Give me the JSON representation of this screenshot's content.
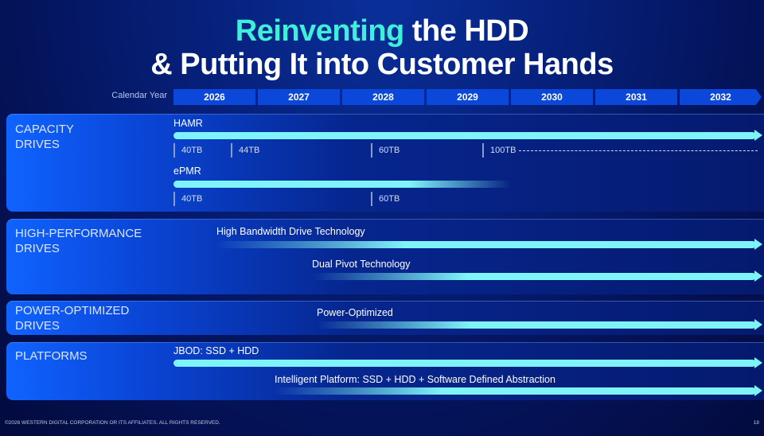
{
  "title": {
    "accent": "Reinventing",
    "line1_rest": " the HDD",
    "line2": "& Putting It into Customer Hands"
  },
  "calendar": {
    "label": "Calendar Year",
    "years": [
      "2026",
      "2027",
      "2028",
      "2029",
      "2030",
      "2031",
      "2032"
    ]
  },
  "sections": {
    "capacity": {
      "label_1": "CAPACITY",
      "label_2": "DRIVES",
      "hamr": {
        "label": "HAMR",
        "milestones": [
          "40TB",
          "44TB",
          "60TB",
          "100TB"
        ]
      },
      "epmr": {
        "label": "ePMR",
        "milestones": [
          "40TB",
          "60TB"
        ]
      }
    },
    "performance": {
      "label_1": "HIGH-PERFORMANCE",
      "label_2": "DRIVES",
      "items": [
        "High Bandwidth Drive Technology",
        "Dual Pivot Technology"
      ]
    },
    "power": {
      "label_1": "POWER-OPTIMIZED",
      "label_2": "DRIVES",
      "items": [
        "Power-Optimized"
      ]
    },
    "platforms": {
      "label": "PLATFORMS",
      "items": [
        "JBOD: SSD + HDD",
        "Intelligent Platform: SSD + HDD + Software Defined Abstraction"
      ]
    }
  },
  "footer": {
    "copyright": "©2026 WESTERN DIGITAL CORPORATION OR ITS AFFILIATES. ALL RIGHTS RESERVED.",
    "page": "18"
  },
  "colors": {
    "accent": "#3ff0d8",
    "bar": "#7ff4f8",
    "year_header": "#0b47d8"
  }
}
